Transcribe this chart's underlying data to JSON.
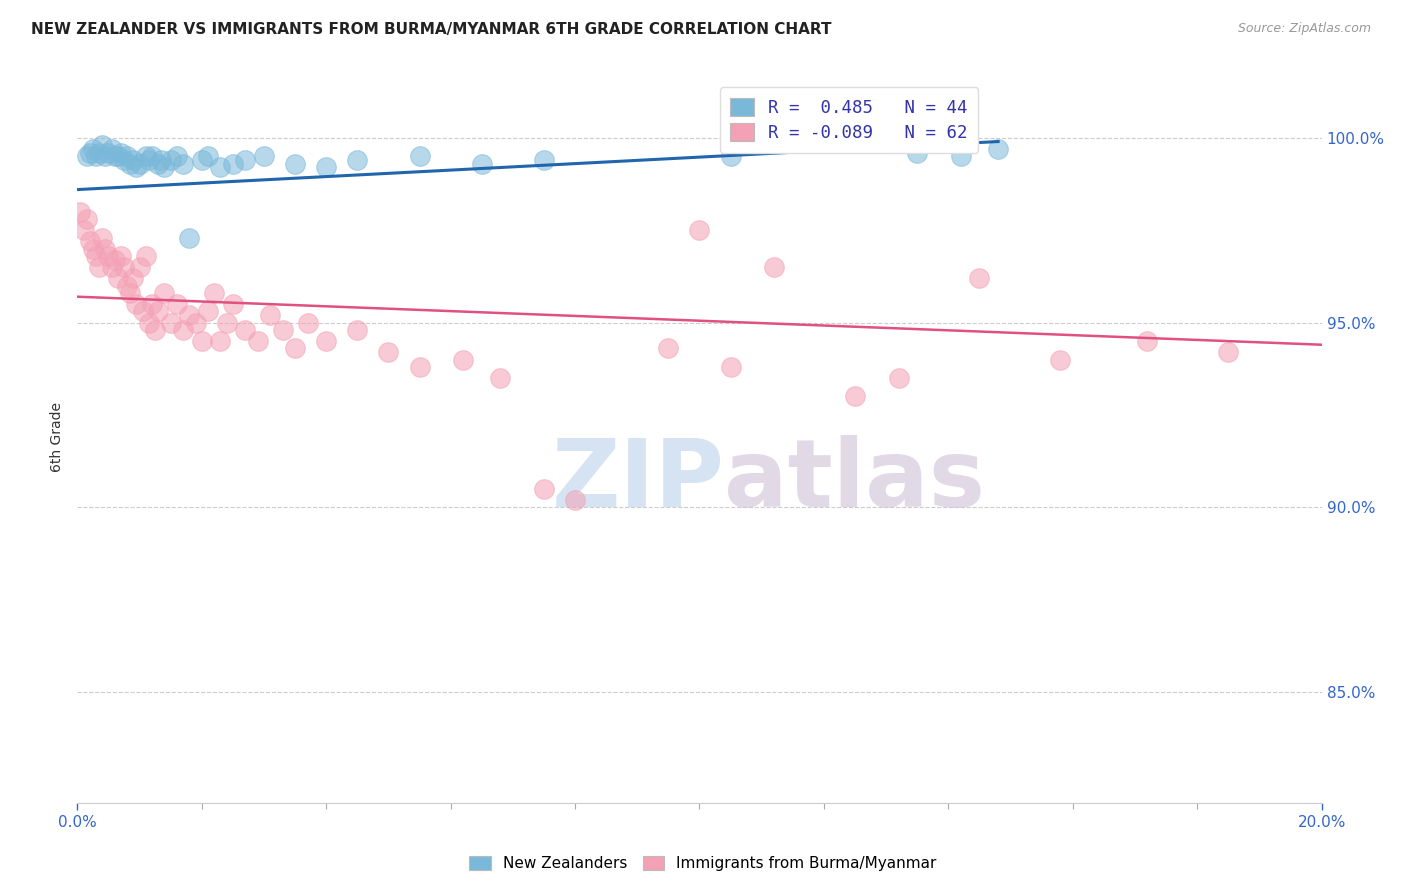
{
  "title": "NEW ZEALANDER VS IMMIGRANTS FROM BURMA/MYANMAR 6TH GRADE CORRELATION CHART",
  "source": "Source: ZipAtlas.com",
  "ylabel": "6th Grade",
  "xlim": [
    0.0,
    20.0
  ],
  "ylim": [
    82.0,
    101.8
  ],
  "yticks": [
    85.0,
    90.0,
    95.0,
    100.0
  ],
  "ytick_labels": [
    "85.0%",
    "90.0%",
    "95.0%",
    "100.0%"
  ],
  "legend_line1": "R =  0.485   N = 44",
  "legend_line2": "R = -0.089   N = 62",
  "blue_color": "#7ab8d9",
  "pink_color": "#f4a0b5",
  "blue_line_color": "#2166ac",
  "pink_line_color": "#e05080",
  "watermark_zip": "ZIP",
  "watermark_atlas": "atlas",
  "blue_scatter_x": [
    0.15,
    0.2,
    0.25,
    0.3,
    0.35,
    0.4,
    0.45,
    0.5,
    0.55,
    0.6,
    0.65,
    0.7,
    0.75,
    0.8,
    0.85,
    0.9,
    0.95,
    1.0,
    1.1,
    1.15,
    1.2,
    1.3,
    1.35,
    1.4,
    1.5,
    1.6,
    1.7,
    1.8,
    2.0,
    2.1,
    2.3,
    2.5,
    2.7,
    3.0,
    3.5,
    4.0,
    4.5,
    5.5,
    6.5,
    7.5,
    10.5,
    13.5,
    14.2,
    14.8
  ],
  "blue_scatter_y": [
    99.5,
    99.6,
    99.7,
    99.5,
    99.6,
    99.8,
    99.5,
    99.6,
    99.7,
    99.5,
    99.5,
    99.6,
    99.4,
    99.5,
    99.3,
    99.4,
    99.2,
    99.3,
    99.5,
    99.4,
    99.5,
    99.3,
    99.4,
    99.2,
    99.4,
    99.5,
    99.3,
    97.3,
    99.4,
    99.5,
    99.2,
    99.3,
    99.4,
    99.5,
    99.3,
    99.2,
    99.4,
    99.5,
    99.3,
    99.4,
    99.5,
    99.6,
    99.5,
    99.7
  ],
  "pink_scatter_x": [
    0.05,
    0.1,
    0.15,
    0.2,
    0.25,
    0.3,
    0.35,
    0.4,
    0.45,
    0.5,
    0.55,
    0.6,
    0.65,
    0.7,
    0.75,
    0.8,
    0.85,
    0.9,
    0.95,
    1.0,
    1.05,
    1.1,
    1.15,
    1.2,
    1.25,
    1.3,
    1.4,
    1.5,
    1.6,
    1.7,
    1.8,
    1.9,
    2.0,
    2.1,
    2.2,
    2.3,
    2.4,
    2.5,
    2.7,
    2.9,
    3.1,
    3.3,
    3.5,
    3.7,
    4.0,
    4.5,
    5.0,
    5.5,
    6.2,
    6.8,
    7.5,
    8.0,
    9.5,
    10.0,
    10.5,
    11.2,
    12.5,
    13.2,
    14.5,
    15.8,
    17.2,
    18.5
  ],
  "pink_scatter_y": [
    98.0,
    97.5,
    97.8,
    97.2,
    97.0,
    96.8,
    96.5,
    97.3,
    97.0,
    96.8,
    96.5,
    96.7,
    96.2,
    96.8,
    96.5,
    96.0,
    95.8,
    96.2,
    95.5,
    96.5,
    95.3,
    96.8,
    95.0,
    95.5,
    94.8,
    95.3,
    95.8,
    95.0,
    95.5,
    94.8,
    95.2,
    95.0,
    94.5,
    95.3,
    95.8,
    94.5,
    95.0,
    95.5,
    94.8,
    94.5,
    95.2,
    94.8,
    94.3,
    95.0,
    94.5,
    94.8,
    94.2,
    93.8,
    94.0,
    93.5,
    90.5,
    90.2,
    94.3,
    97.5,
    93.8,
    96.5,
    93.0,
    93.5,
    96.2,
    94.0,
    94.5,
    94.2
  ],
  "blue_line_x": [
    0.0,
    14.8
  ],
  "blue_line_y": [
    98.6,
    99.9
  ],
  "pink_line_x": [
    0.0,
    20.0
  ],
  "pink_line_y": [
    95.7,
    94.4
  ]
}
